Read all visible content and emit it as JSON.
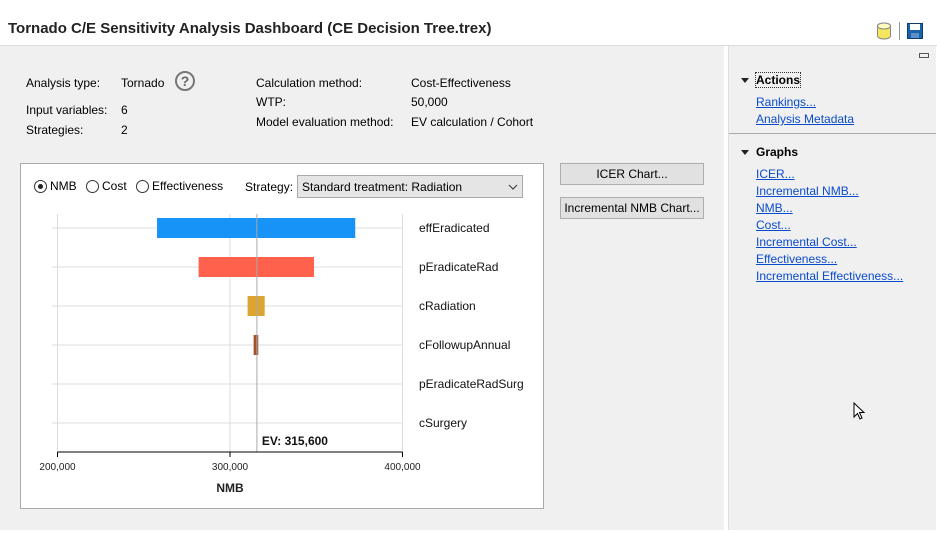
{
  "window": {
    "title": "Tornado C/E Sensitivity Analysis Dashboard (CE Decision Tree.trex)",
    "icons": [
      "database-icon",
      "save-icon"
    ]
  },
  "summary": {
    "analysis_type_label": "Analysis type:",
    "analysis_type": "Tornado",
    "input_variables_label": "Input variables:",
    "input_variables": "6",
    "strategies_label": "Strategies:",
    "strategies": "2",
    "calc_method_label": "Calculation method:",
    "calc_method": "Cost-Effectiveness",
    "wtp_label": "WTP:",
    "wtp": "50,000",
    "model_eval_label": "Model evaluation method:",
    "model_eval": "EV calculation / Cohort"
  },
  "controls": {
    "radios": [
      {
        "label": "NMB",
        "selected": true
      },
      {
        "label": "Cost",
        "selected": false
      },
      {
        "label": "Effectiveness",
        "selected": false
      }
    ],
    "strategy_label": "Strategy:",
    "strategy_value": "Standard treatment: Radiation"
  },
  "buttons": {
    "icer_chart": "ICER Chart...",
    "incr_nmb_chart": "Incremental NMB Chart..."
  },
  "sidebar": {
    "actions_title": "Actions",
    "actions": [
      "Rankings...",
      "Analysis Metadata"
    ],
    "graphs_title": "Graphs",
    "graphs": [
      "ICER...",
      "Incremental NMB...",
      "NMB...",
      "Cost...",
      "Incremental Cost...",
      "Effectiveness...",
      "Incremental Effectiveness..."
    ]
  },
  "chart_data": {
    "type": "bar",
    "subtype": "tornado",
    "xlabel": "NMB",
    "xlim": [
      200000,
      400000
    ],
    "xticks": [
      "200,000",
      "300,000",
      "400,000"
    ],
    "ev_value": 315600,
    "ev_label": "EV: 315,600",
    "grid": true,
    "categories": [
      "effEradicated",
      "pEradicateRad",
      "cRadiation",
      "cFollowupAnnual",
      "pEradicateRadSurg",
      "cSurgery"
    ],
    "ranges": [
      [
        257700,
        372600
      ],
      [
        281800,
        348700
      ],
      [
        310200,
        320100
      ],
      [
        313700,
        316400
      ],
      [
        315600,
        315600
      ],
      [
        315600,
        315600
      ]
    ],
    "colors": [
      "#1793f7",
      "#ff614d",
      "#dca430",
      "#a0522d",
      "#888888",
      "#888888"
    ]
  }
}
